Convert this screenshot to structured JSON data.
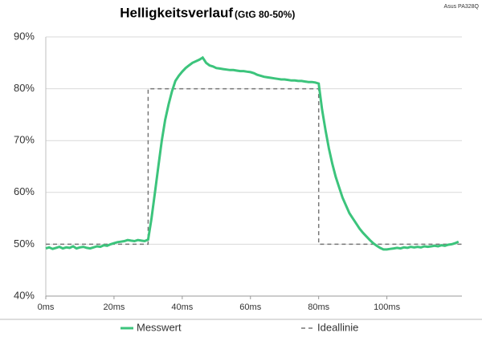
{
  "chart_data": {
    "type": "line",
    "title": "Helligkeitsverlauf",
    "subtitle": "(GtG 80-50%)",
    "annotation": "Asus PA328Q",
    "xlim": [
      0,
      122
    ],
    "xticks": [
      {
        "value": 0,
        "label": "0ms"
      },
      {
        "value": 20,
        "label": "20ms"
      },
      {
        "value": 40,
        "label": "40ms"
      },
      {
        "value": 60,
        "label": "60ms"
      },
      {
        "value": 80,
        "label": "80ms"
      },
      {
        "value": 100,
        "label": "100ms"
      }
    ],
    "ylim": [
      40,
      90
    ],
    "yticks": [
      {
        "value": 40,
        "label": "40%"
      },
      {
        "value": 50,
        "label": "50%"
      },
      {
        "value": 60,
        "label": "60%"
      },
      {
        "value": 70,
        "label": "70%"
      },
      {
        "value": 80,
        "label": "80%"
      },
      {
        "value": 90,
        "label": "90%"
      }
    ],
    "grid": true,
    "legend": "bottom",
    "series": [
      {
        "name": "Messwert",
        "color": "#3cc47c",
        "style": "solid",
        "x": [
          0,
          1,
          2,
          3,
          4,
          5,
          6,
          7,
          8,
          9,
          10,
          11,
          12,
          13,
          14,
          15,
          16,
          17,
          18,
          19,
          20,
          21,
          22,
          23,
          24,
          25,
          26,
          27,
          28,
          29,
          30,
          31,
          32,
          33,
          34,
          35,
          36,
          37,
          38,
          39,
          40,
          41,
          42,
          43,
          44,
          45,
          46,
          47,
          48,
          49,
          50,
          51,
          52,
          53,
          54,
          55,
          56,
          57,
          58,
          59,
          60,
          61,
          62,
          63,
          64,
          65,
          66,
          67,
          68,
          69,
          70,
          71,
          72,
          73,
          74,
          75,
          76,
          77,
          78,
          79,
          80,
          81,
          82,
          83,
          84,
          85,
          86,
          87,
          88,
          89,
          90,
          91,
          92,
          93,
          94,
          95,
          96,
          97,
          98,
          99,
          100,
          101,
          102,
          103,
          104,
          105,
          106,
          107,
          108,
          109,
          110,
          111,
          112,
          113,
          114,
          115,
          116,
          117,
          118,
          119,
          120,
          121
        ],
        "values": [
          49.2,
          49.4,
          49.1,
          49.3,
          49.5,
          49.2,
          49.4,
          49.3,
          49.6,
          49.2,
          49.4,
          49.5,
          49.3,
          49.2,
          49.4,
          49.6,
          49.5,
          49.8,
          49.7,
          50.0,
          50.2,
          50.4,
          50.5,
          50.6,
          50.8,
          50.7,
          50.6,
          50.8,
          50.7,
          50.6,
          50.9,
          55,
          60,
          65,
          70,
          74,
          77,
          79.5,
          81.5,
          82.5,
          83.3,
          84,
          84.5,
          85,
          85.3,
          85.6,
          86,
          85,
          84.5,
          84.3,
          84,
          83.9,
          83.8,
          83.7,
          83.6,
          83.6,
          83.5,
          83.4,
          83.4,
          83.3,
          83.2,
          83,
          82.7,
          82.5,
          82.3,
          82.2,
          82.1,
          82,
          81.9,
          81.8,
          81.8,
          81.7,
          81.6,
          81.6,
          81.5,
          81.5,
          81.4,
          81.3,
          81.3,
          81.2,
          81,
          76,
          72,
          68.5,
          65.5,
          63,
          61,
          59,
          57.5,
          56,
          55,
          54,
          53,
          52.2,
          51.5,
          50.8,
          50.2,
          49.7,
          49.3,
          49,
          49,
          49.1,
          49.2,
          49.3,
          49.2,
          49.4,
          49.3,
          49.5,
          49.4,
          49.5,
          49.4,
          49.6,
          49.5,
          49.6,
          49.7,
          49.6,
          49.8,
          49.7,
          49.9,
          50,
          50.2,
          50.5
        ]
      },
      {
        "name": "Ideallinie",
        "color": "#777777",
        "style": "dashed",
        "x": [
          0,
          30,
          30,
          80,
          80,
          122
        ],
        "values": [
          50,
          50,
          80,
          80,
          50,
          50
        ]
      }
    ]
  }
}
